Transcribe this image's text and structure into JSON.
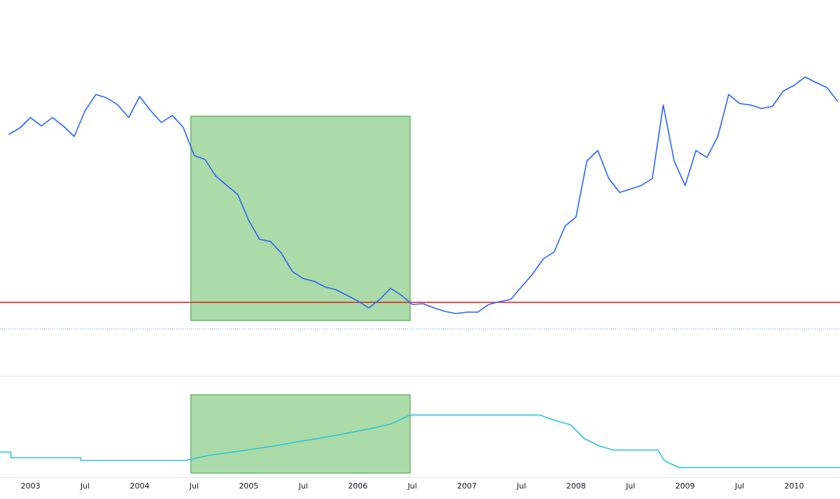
{
  "chart_data": [
    {
      "type": "line",
      "xlim": [
        2002.72,
        2010.42
      ],
      "ylim": [
        0,
        537
      ],
      "xticks": [
        2003,
        {
          "value": 2003.5,
          "label": "Jul"
        },
        2004,
        {
          "value": 2004.5,
          "label": "Jul"
        },
        2005,
        {
          "value": 2005.5,
          "label": "Jul"
        },
        2006,
        {
          "value": 2006.5,
          "label": "Jul"
        },
        2007,
        {
          "value": 2007.5,
          "label": "Jul"
        },
        2008,
        {
          "value": 2008.5,
          "label": "Jul"
        },
        2009,
        {
          "value": 2009.5,
          "label": "Jul"
        },
        2010
      ],
      "x": [
        2002.8,
        2002.9,
        2003.0,
        2003.1,
        2003.2,
        2003.3,
        2003.4,
        2003.5,
        2003.6,
        2003.7,
        2003.8,
        2003.9,
        2004.0,
        2004.1,
        2004.2,
        2004.3,
        2004.4,
        2004.5,
        2004.6,
        2004.7,
        2004.8,
        2004.9,
        2005.0,
        2005.1,
        2005.2,
        2005.3,
        2005.4,
        2005.5,
        2005.6,
        2005.7,
        2005.8,
        2005.9,
        2006.0,
        2006.1,
        2006.2,
        2006.3,
        2006.4,
        2006.5,
        2006.6,
        2006.7,
        2006.8,
        2006.9,
        2007.0,
        2007.1,
        2007.2,
        2007.3,
        2007.4,
        2007.5,
        2007.6,
        2007.7,
        2007.8,
        2007.9,
        2008.0,
        2008.1,
        2008.2,
        2008.3,
        2008.4,
        2008.5,
        2008.6,
        2008.7,
        2008.8,
        2008.9,
        2009.0,
        2009.1,
        2009.2,
        2009.3,
        2009.4,
        2009.5,
        2009.6,
        2009.7,
        2009.8,
        2009.9,
        2010.0,
        2010.1,
        2010.2,
        2010.3,
        2010.4
      ],
      "series": [
        {
          "color": "#2962ff",
          "values": [
            345,
            354,
            369,
            357,
            369,
            357,
            342,
            379,
            402,
            397,
            387,
            369,
            399,
            379,
            362,
            372,
            355,
            315,
            309,
            285,
            272,
            259,
            222,
            195,
            192,
            175,
            149,
            139,
            135,
            127,
            123,
            115,
            107,
            97,
            109,
            125,
            115,
            102,
            103,
            97,
            92,
            89,
            91,
            91,
            102,
            106,
            109,
            127,
            145,
            167,
            177,
            214,
            227,
            307,
            322,
            282,
            262,
            267,
            272,
            282,
            387,
            307,
            272,
            322,
            312,
            342,
            402,
            389,
            387,
            382,
            385,
            407,
            415,
            427,
            419,
            412,
            392
          ]
        }
      ],
      "hlines": [
        {
          "value": 105,
          "color": "#e01b1b",
          "style": "solid"
        },
        {
          "value": 67,
          "color": "#5b8bd6",
          "style": "dotted"
        }
      ],
      "rect": {
        "x": [
          2004.47,
          2006.48
        ],
        "y": [
          79,
          371
        ],
        "color": "#7ec77a"
      }
    },
    {
      "type": "line",
      "xlim": [
        2002.72,
        2010.42
      ],
      "ylim": [
        0,
        145
      ],
      "x": [
        2002.72,
        2002.82,
        2002.82,
        2003.46,
        2003.46,
        2004.42,
        2004.62,
        2004.9,
        2005.2,
        2005.5,
        2005.8,
        2006.1,
        2006.3,
        2006.48,
        2007.67,
        2007.79,
        2007.95,
        2008.08,
        2008.21,
        2008.34,
        2008.75,
        2008.81,
        2008.94,
        2010.42
      ],
      "series": [
        {
          "color": "#26c6da",
          "values": [
            36,
            36,
            28,
            28,
            24,
            24,
            31,
            37,
            44,
            52,
            60,
            69,
            76,
            89,
            89,
            82,
            75,
            55,
            45,
            39,
            39,
            24,
            14,
            14
          ]
        }
      ],
      "rect": {
        "x": [
          2004.47,
          2006.48
        ],
        "y": [
          6,
          118
        ],
        "color": "#7ec77a"
      }
    }
  ]
}
